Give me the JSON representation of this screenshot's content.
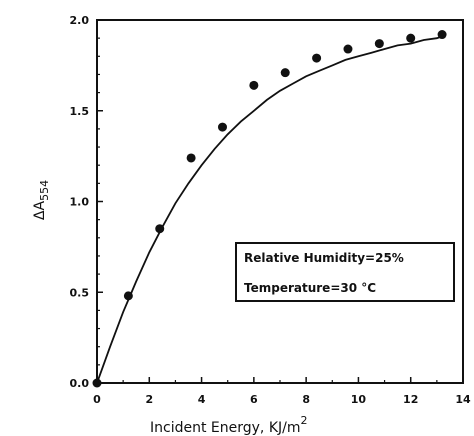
{
  "chart_data": {
    "type": "scatter",
    "xlabel": "Incident Energy, KJ/m",
    "xlabel_superscript": "2",
    "ylabel_main": "ΔA",
    "ylabel_sub": "554",
    "xlim": [
      0,
      14
    ],
    "ylim": [
      0.0,
      2.0
    ],
    "xticks": [
      "0",
      "2",
      "4",
      "6",
      "8",
      "10",
      "12",
      "14"
    ],
    "yticks": [
      "0.0",
      "0.5",
      "1.0",
      "1.5",
      "2.0"
    ],
    "grid": false,
    "legend_position": "center-right",
    "annotations": [
      "Relative Humidity=25%",
      "Temperature=30 °C"
    ],
    "series": [
      {
        "points": [
          {
            "x": 0.0,
            "y": 0.0
          },
          {
            "x": 1.2,
            "y": 0.48
          },
          {
            "x": 2.4,
            "y": 0.85
          },
          {
            "x": 3.6,
            "y": 1.24
          },
          {
            "x": 4.8,
            "y": 1.41
          },
          {
            "x": 6.0,
            "y": 1.64
          },
          {
            "x": 7.2,
            "y": 1.71
          },
          {
            "x": 8.4,
            "y": 1.79
          },
          {
            "x": 9.6,
            "y": 1.84
          },
          {
            "x": 10.8,
            "y": 1.87
          },
          {
            "x": 12.0,
            "y": 1.9
          },
          {
            "x": 13.2,
            "y": 1.92
          }
        ]
      }
    ],
    "fit_curve": {
      "x": [
        0,
        0.5,
        1,
        1.5,
        2,
        2.5,
        3,
        3.5,
        4,
        4.5,
        5,
        5.5,
        6,
        6.5,
        7,
        7.5,
        8,
        8.5,
        9,
        9.5,
        10,
        10.5,
        11,
        11.5,
        12,
        12.5,
        13,
        13.2
      ],
      "y": [
        0.0,
        0.2,
        0.39,
        0.56,
        0.72,
        0.86,
        0.99,
        1.1,
        1.2,
        1.29,
        1.37,
        1.44,
        1.5,
        1.56,
        1.61,
        1.65,
        1.69,
        1.72,
        1.75,
        1.78,
        1.8,
        1.82,
        1.84,
        1.86,
        1.87,
        1.89,
        1.9,
        1.91
      ]
    }
  }
}
